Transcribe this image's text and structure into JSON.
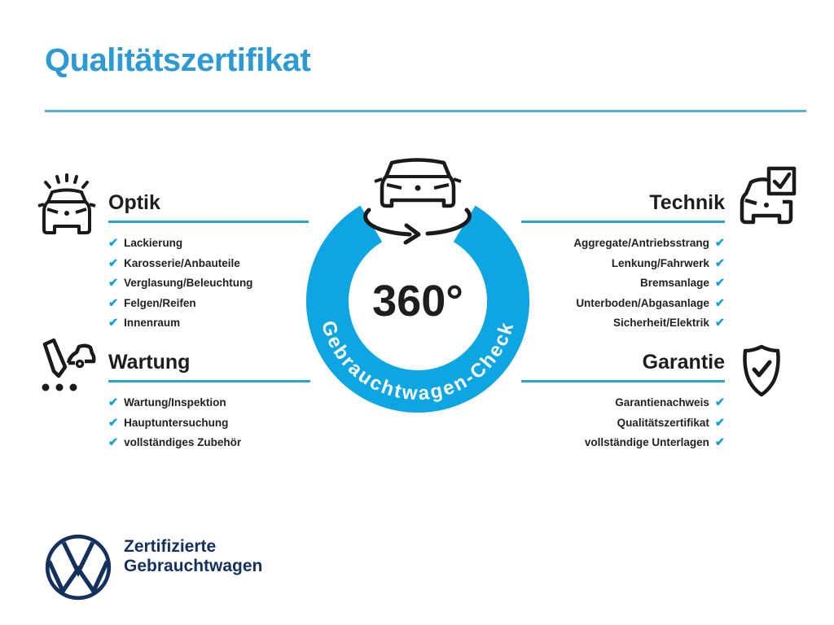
{
  "page": {
    "title": "Qualitätszertifikat"
  },
  "badge": {
    "center_text": "360°",
    "ring_text": "Gebrauchtwagen-Check"
  },
  "sections": {
    "optik": {
      "title": "Optik",
      "icon": "sparkling-car-icon",
      "items": [
        "Lackierung",
        "Karosserie/Anbauteile",
        "Verglasung/Beleuchtung",
        "Felgen/Reifen",
        "Innenraum"
      ]
    },
    "technik": {
      "title": "Technik",
      "icon": "car-checkbox-icon",
      "items": [
        "Aggregate/Antriebsstrang",
        "Lenkung/Fahrwerk",
        "Bremsanlage",
        "Unterboden/Abgasanlage",
        "Sicherheit/Elektrik"
      ]
    },
    "wartung": {
      "title": "Wartung",
      "icon": "service-checklist-icon",
      "items": [
        "Wartung/Inspektion",
        "Hauptuntersuchung",
        "vollständiges Zubehör"
      ]
    },
    "garantie": {
      "title": "Garantie",
      "icon": "shield-check-icon",
      "items": [
        "Garantienachweis",
        "Qualitätszertifikat",
        "vollständige Unterlagen"
      ]
    }
  },
  "footer": {
    "line1": "Zertifizierte",
    "line2": "Gebrauchtwagen"
  },
  "colors": {
    "title_blue": "#2d9ad4",
    "ring_blue": "#0ea5e3",
    "check_blue": "#15a0db",
    "underline_blue": "#2aa6ce",
    "vw_navy": "#14305f",
    "text_dark": "#1e1e1c"
  },
  "check_glyph": "✔"
}
